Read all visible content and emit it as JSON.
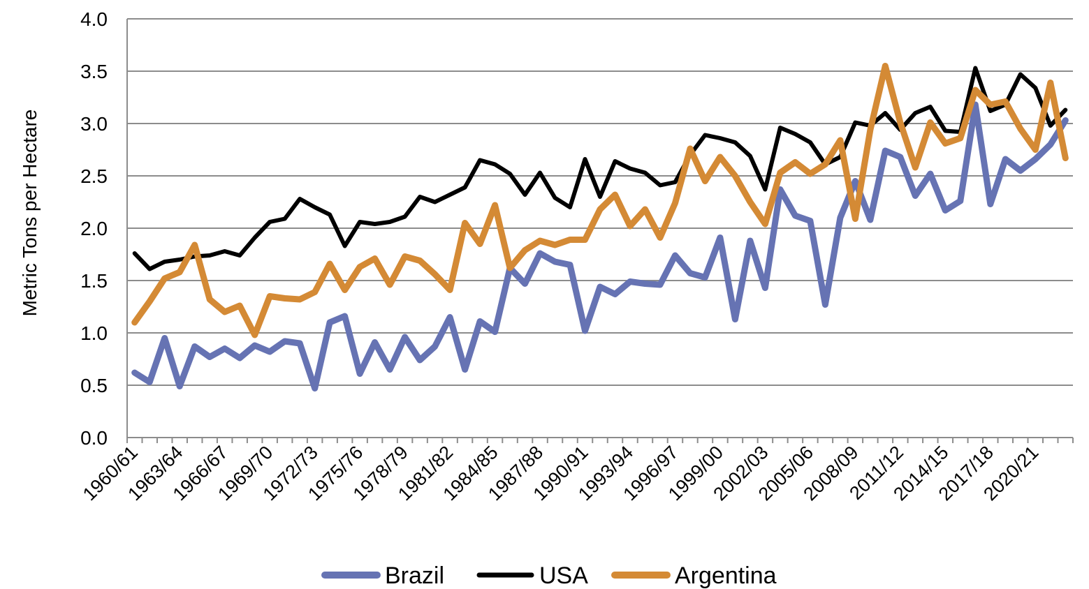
{
  "chart_data": {
    "type": "line",
    "title": "",
    "xlabel": "",
    "ylabel": "Metric Tons per Hectare",
    "ylim": [
      0,
      4.0
    ],
    "yticks": [
      "0.0",
      "0.5",
      "1.0",
      "1.5",
      "2.0",
      "2.5",
      "3.0",
      "3.5",
      "4.0"
    ],
    "grid": "horizontal",
    "legend": "bottom",
    "categories": [
      "1960/61",
      "1961/62",
      "1962/63",
      "1963/64",
      "1964/65",
      "1965/66",
      "1966/67",
      "1967/68",
      "1968/69",
      "1969/70",
      "1970/71",
      "1971/72",
      "1972/73",
      "1973/74",
      "1974/75",
      "1975/76",
      "1976/77",
      "1977/78",
      "1978/79",
      "1979/80",
      "1980/81",
      "1981/82",
      "1982/83",
      "1983/84",
      "1984/85",
      "1985/86",
      "1986/87",
      "1987/88",
      "1988/89",
      "1989/90",
      "1990/91",
      "1991/92",
      "1992/93",
      "1993/94",
      "1994/95",
      "1995/96",
      "1996/97",
      "1997/98",
      "1998/99",
      "1999/00",
      "2000/01",
      "2001/02",
      "2002/03",
      "2003/04",
      "2004/05",
      "2005/06",
      "2006/07",
      "2007/08",
      "2008/09",
      "2009/10",
      "2010/11",
      "2011/12",
      "2012/13",
      "2013/14",
      "2014/15",
      "2015/16",
      "2016/17",
      "2017/18",
      "2018/19",
      "2019/20",
      "2020/21",
      "2021/22",
      "2022/23"
    ],
    "tick_labels": [
      "1960/61",
      "1963/64",
      "1966/67",
      "1969/70",
      "1972/73",
      "1975/76",
      "1978/79",
      "1981/82",
      "1984/85",
      "1987/88",
      "1990/91",
      "1993/94",
      "1996/97",
      "1999/00",
      "2002/03",
      "2005/06",
      "2008/09",
      "2011/12",
      "2014/15",
      "2017/18",
      "2020/21"
    ],
    "series": [
      {
        "name": "Brazil",
        "color": "#6673b3",
        "values": [
          0.62,
          0.53,
          0.95,
          0.49,
          0.87,
          0.77,
          0.85,
          0.76,
          0.88,
          0.82,
          0.92,
          0.9,
          0.47,
          1.1,
          1.16,
          0.61,
          0.91,
          0.65,
          0.96,
          0.74,
          0.87,
          1.15,
          0.65,
          1.11,
          1.01,
          1.62,
          1.47,
          1.76,
          1.68,
          1.65,
          1.02,
          1.44,
          1.37,
          1.49,
          1.47,
          1.46,
          1.74,
          1.57,
          1.53,
          1.91,
          1.13,
          1.88,
          1.43,
          2.37,
          2.12,
          2.07,
          1.27,
          2.1,
          2.45,
          2.08,
          2.74,
          2.68,
          2.31,
          2.52,
          2.17,
          2.26,
          3.18,
          2.23,
          2.66,
          2.55,
          2.66,
          2.8,
          3.03
        ]
      },
      {
        "name": "USA",
        "color": "#000000",
        "values": [
          1.76,
          1.61,
          1.68,
          1.7,
          1.73,
          1.74,
          1.78,
          1.74,
          1.91,
          2.06,
          2.09,
          2.28,
          2.2,
          2.13,
          1.83,
          2.06,
          2.04,
          2.06,
          2.11,
          2.3,
          2.25,
          2.32,
          2.39,
          2.65,
          2.61,
          2.52,
          2.32,
          2.53,
          2.29,
          2.2,
          2.66,
          2.3,
          2.64,
          2.57,
          2.53,
          2.41,
          2.44,
          2.7,
          2.89,
          2.86,
          2.82,
          2.69,
          2.37,
          2.96,
          2.9,
          2.82,
          2.61,
          2.68,
          3.01,
          2.98,
          3.1,
          2.94,
          3.1,
          3.16,
          2.93,
          2.92,
          3.53,
          3.12,
          3.18,
          3.47,
          3.34,
          2.98,
          3.13
        ]
      },
      {
        "name": "Argentina",
        "color": "#d48a35",
        "values": [
          1.1,
          1.3,
          1.52,
          1.58,
          1.84,
          1.32,
          1.2,
          1.26,
          0.98,
          1.35,
          1.33,
          1.32,
          1.39,
          1.66,
          1.41,
          1.63,
          1.71,
          1.46,
          1.73,
          1.69,
          1.56,
          1.41,
          2.05,
          1.85,
          2.22,
          1.62,
          1.79,
          1.88,
          1.84,
          1.89,
          1.89,
          2.18,
          2.32,
          2.02,
          2.18,
          1.91,
          2.24,
          2.76,
          2.45,
          2.68,
          2.5,
          2.25,
          2.04,
          2.53,
          2.63,
          2.52,
          2.61,
          2.84,
          2.09,
          2.94,
          3.55,
          3.01,
          2.58,
          3.01,
          2.81,
          2.86,
          3.32,
          3.18,
          3.21,
          2.95,
          2.75,
          3.39,
          2.67
        ]
      }
    ]
  }
}
